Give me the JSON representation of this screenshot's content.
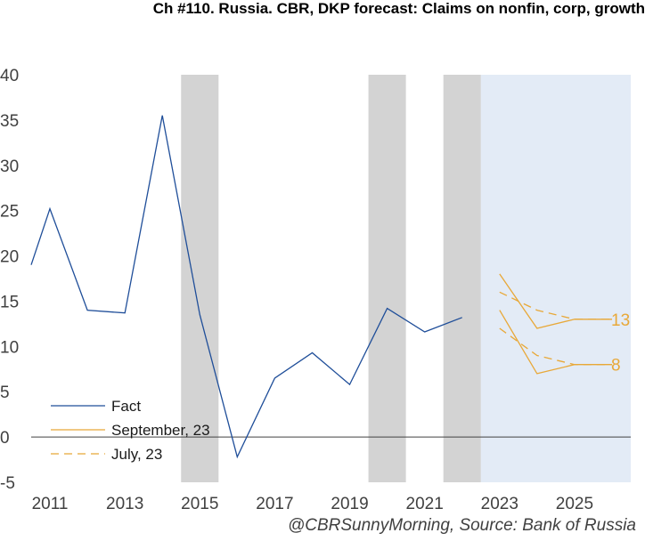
{
  "colors": {
    "fact": "#1f4e99",
    "forecast": "#e8a838",
    "recession": "#d3d3d3",
    "forecast_area": "#e3ebf6",
    "zero_line": "#404040"
  },
  "chart_data": {
    "type": "line",
    "title": "Ch #110. Russia. CBR, DKP forecast: Claims on nonfin, corp, growth",
    "source": "@CBRSunnyMorning, Source: Bank of Russia",
    "xlabel": "",
    "ylabel": "",
    "ylim": [
      -5,
      40
    ],
    "xlim": [
      2010.5,
      2026.5
    ],
    "y_ticks": [
      "-5",
      "0",
      "5",
      "10",
      "15",
      "20",
      "25",
      "30",
      "35",
      "40"
    ],
    "x_ticks": [
      "2011",
      "2013",
      "2015",
      "2017",
      "2019",
      "2021",
      "2023",
      "2025"
    ],
    "grid": false,
    "legend_position": "bottom-left",
    "shaded_periods": [
      [
        2014.5,
        2015.5
      ],
      [
        2019.5,
        2020.5
      ],
      [
        2021.5,
        2022.5
      ]
    ],
    "forecast_period": [
      2022.5,
      2026.5
    ],
    "series": [
      {
        "name": "Fact",
        "style": "solid",
        "color_key": "fact",
        "x": [
          2010.5,
          2011,
          2012,
          2013,
          2014,
          2015,
          2016,
          2017,
          2018,
          2019,
          2020,
          2021,
          2022
        ],
        "y": [
          19.0,
          25.2,
          14.0,
          13.7,
          35.5,
          13.5,
          -2.2,
          6.5,
          9.3,
          5.8,
          14.2,
          11.6,
          13.2
        ]
      },
      {
        "name": "September, 23",
        "style": "solid",
        "color_key": "forecast",
        "ranges": [
          {
            "x": [
              2023,
              2024,
              2025,
              2026
            ],
            "y": [
              18.0,
              12.0,
              13.0,
              13.0
            ]
          },
          {
            "x": [
              2023,
              2024,
              2025,
              2026
            ],
            "y": [
              14.0,
              7.0,
              8.0,
              8.0
            ]
          }
        ]
      },
      {
        "name": "July, 23",
        "style": "dashed",
        "color_key": "forecast",
        "ranges": [
          {
            "x": [
              2023,
              2024,
              2025,
              2026
            ],
            "y": [
              16.0,
              14.0,
              13.0,
              13.0
            ]
          },
          {
            "x": [
              2023,
              2024,
              2025,
              2026
            ],
            "y": [
              12.0,
              9.0,
              8.0,
              8.0
            ]
          }
        ]
      }
    ],
    "end_labels": [
      "13",
      "8"
    ],
    "end_label_values": [
      13,
      8
    ]
  }
}
